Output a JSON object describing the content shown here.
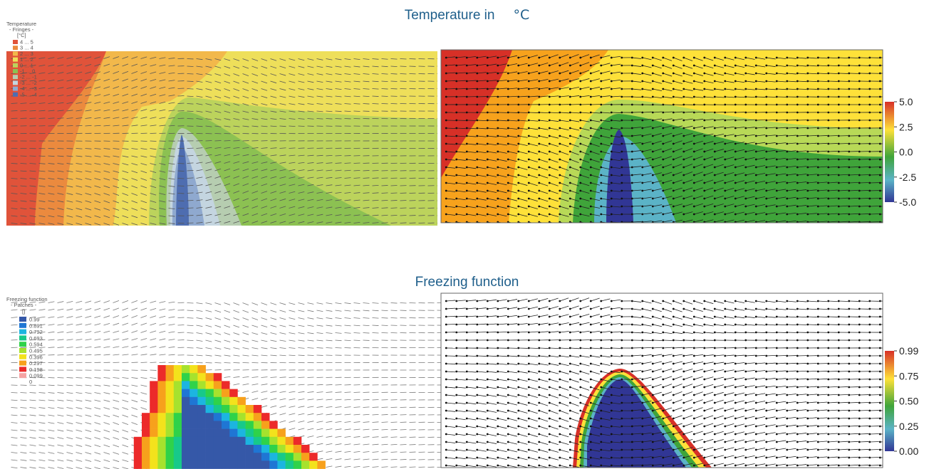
{
  "titles": {
    "temperature": "Temperature in",
    "temperature_unit": "°C",
    "freezing": "Freezing function"
  },
  "chart_data": [
    {
      "type": "heatmap",
      "panel": "top-left",
      "legend": {
        "title": [
          "Temperature",
          "- Fringes -",
          "[°C]"
        ],
        "placement": "top-left",
        "entries": [
          {
            "label": "4 ... 5",
            "color": "#e0533a"
          },
          {
            "label": "3 ... 4",
            "color": "#eb8a3e"
          },
          {
            "label": "2 ... 3",
            "color": "#f2b84b"
          },
          {
            "label": "1 ... 2",
            "color": "#eedf5a"
          },
          {
            "label": "0 ... 1",
            "color": "#bcd35c"
          },
          {
            "label": "-1 ... 0",
            "color": "#8cc152"
          },
          {
            "label": "-2 ... -1",
            "color": "#b6cdb0"
          },
          {
            "label": "-3 ... -2",
            "color": "#c4d5e0"
          },
          {
            "label": "-4 ... -3",
            "color": "#8fa9cf"
          },
          {
            "label": "-5 ... -4",
            "color": "#4e6db0"
          }
        ]
      },
      "flow": "left-to-right"
    },
    {
      "type": "heatmap",
      "panel": "top-right",
      "colorbar": {
        "ticks": [
          "5.0",
          "2.5",
          "0.0",
          "-2.5",
          "-5.0"
        ],
        "range": [
          -5,
          5
        ],
        "colors": [
          "#d73027",
          "#fee139",
          "#3fa43a",
          "#5bb3c7",
          "#313695"
        ]
      },
      "flow": "left-to-right"
    },
    {
      "type": "heatmap",
      "panel": "bottom-left",
      "legend": {
        "title": [
          "Freezing function",
          "- Patches -",
          "[]"
        ],
        "placement": "top-left",
        "entries": [
          {
            "label": "0.99",
            "color": "#3558a8"
          },
          {
            "label": "0.891",
            "color": "#1f76d4"
          },
          {
            "label": "0.792",
            "color": "#1cb5e0"
          },
          {
            "label": "0.693",
            "color": "#17c98a"
          },
          {
            "label": "0.594",
            "color": "#2fd24a"
          },
          {
            "label": "0.495",
            "color": "#a6e22e"
          },
          {
            "label": "0.396",
            "color": "#f3e21c"
          },
          {
            "label": "0.297",
            "color": "#f7a11c"
          },
          {
            "label": "0.198",
            "color": "#ec2a2a"
          },
          {
            "label": "0.099",
            "color": "#f5a3a3"
          }
        ],
        "footer": "0"
      },
      "flow": "left-to-right"
    },
    {
      "type": "heatmap",
      "panel": "bottom-right",
      "colorbar": {
        "ticks": [
          "0.99",
          "0.75",
          "0.50",
          "0.25",
          "0.00"
        ],
        "range": [
          0,
          0.99
        ],
        "colors": [
          "#d73027",
          "#fee139",
          "#3fa43a",
          "#5bb3c7",
          "#313695"
        ]
      },
      "flow": "left-to-right"
    }
  ]
}
